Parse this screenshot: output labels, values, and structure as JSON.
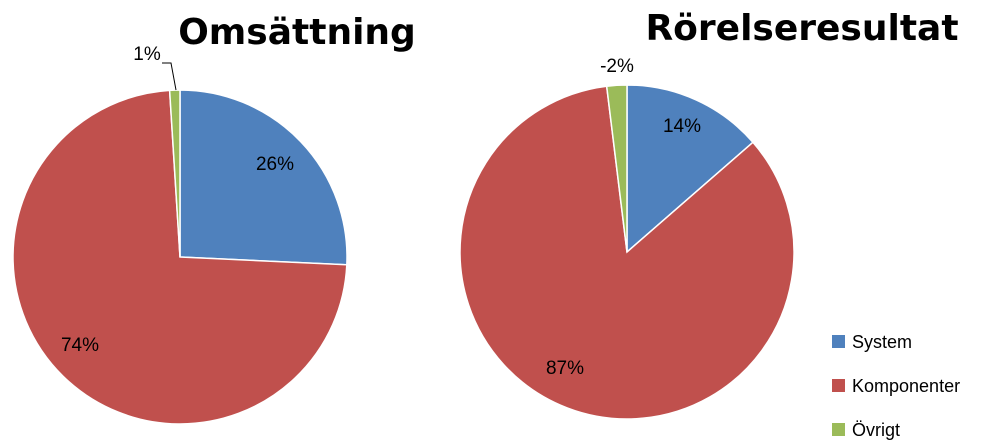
{
  "chart_data": [
    {
      "type": "pie",
      "title": "Omsättning",
      "categories": [
        "System",
        "Komponenter",
        "Övrigt"
      ],
      "values": [
        26,
        74,
        1
      ],
      "labels": [
        "26%",
        "74%",
        "1%"
      ],
      "start": "12 o'clock, clockwise"
    },
    {
      "type": "pie",
      "title": "Rörelseresultat",
      "categories": [
        "System",
        "Komponenter",
        "Övrigt"
      ],
      "values": [
        14,
        87,
        -2
      ],
      "labels": [
        "14%",
        "87%",
        "-2%"
      ],
      "start": "12 o'clock, clockwise"
    }
  ],
  "legend": {
    "placement": "bottom-right",
    "items": [
      {
        "label": "System",
        "color": "#4F81BD"
      },
      {
        "label": "Komponenter",
        "color": "#C0504D"
      },
      {
        "label": "Övrigt",
        "color": "#9BBB59"
      }
    ]
  }
}
